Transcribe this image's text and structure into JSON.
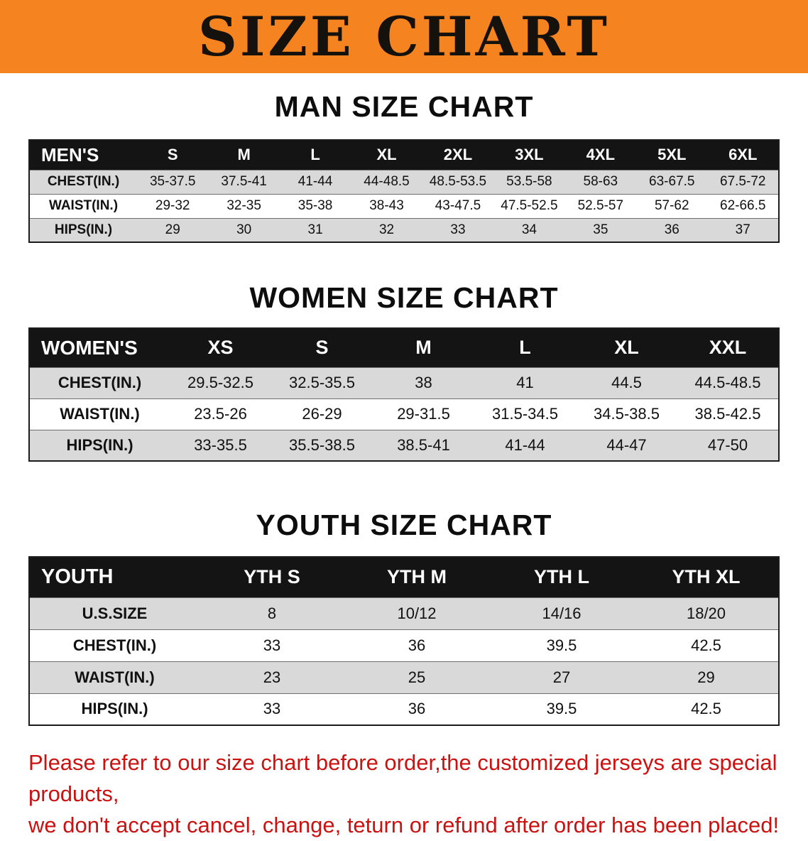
{
  "colors": {
    "banner_bg": "#F5831F",
    "header_bg": "#141414",
    "row_shade": "#D9D9D9",
    "note_color": "#CC1111"
  },
  "banner": {
    "title": "SIZE CHART"
  },
  "sections": [
    {
      "heading": "MAN SIZE CHART",
      "table": {
        "header": [
          "MEN'S",
          "S",
          "M",
          "L",
          "XL",
          "2XL",
          "3XL",
          "4XL",
          "5XL",
          "6XL"
        ],
        "rows": [
          {
            "label": "CHEST(IN.)",
            "values": [
              "35-37.5",
              "37.5-41",
              "41-44",
              "44-48.5",
              "48.5-53.5",
              "53.5-58",
              "58-63",
              "63-67.5",
              "67.5-72"
            ]
          },
          {
            "label": "WAIST(IN.)",
            "values": [
              "29-32",
              "32-35",
              "35-38",
              "38-43",
              "43-47.5",
              "47.5-52.5",
              "52.5-57",
              "57-62",
              "62-66.5"
            ]
          },
          {
            "label": "HIPS(IN.)",
            "values": [
              "29",
              "30",
              "31",
              "32",
              "33",
              "34",
              "35",
              "36",
              "37"
            ]
          }
        ]
      }
    },
    {
      "heading": "WOMEN SIZE CHART",
      "table": {
        "header": [
          "WOMEN'S",
          "XS",
          "S",
          "M",
          "L",
          "XL",
          "XXL"
        ],
        "rows": [
          {
            "label": "CHEST(IN.)",
            "values": [
              "29.5-32.5",
              "32.5-35.5",
              "38",
              "41",
              "44.5",
              "44.5-48.5"
            ]
          },
          {
            "label": "WAIST(IN.)",
            "values": [
              "23.5-26",
              "26-29",
              "29-31.5",
              "31.5-34.5",
              "34.5-38.5",
              "38.5-42.5"
            ]
          },
          {
            "label": "HIPS(IN.)",
            "values": [
              "33-35.5",
              "35.5-38.5",
              "38.5-41",
              "41-44",
              "44-47",
              "47-50"
            ]
          }
        ]
      }
    },
    {
      "heading": "YOUTH SIZE CHART",
      "table": {
        "header": [
          "YOUTH",
          "YTH S",
          "YTH M",
          "YTH L",
          "YTH XL"
        ],
        "rows": [
          {
            "label": "U.S.SIZE",
            "values": [
              "8",
              "10/12",
              "14/16",
              "18/20"
            ]
          },
          {
            "label": "CHEST(IN.)",
            "values": [
              "33",
              "36",
              "39.5",
              "42.5"
            ]
          },
          {
            "label": "WAIST(IN.)",
            "values": [
              "23",
              "25",
              "27",
              "29"
            ]
          },
          {
            "label": "HIPS(IN.)",
            "values": [
              "33",
              "36",
              "39.5",
              "42.5"
            ]
          }
        ]
      }
    }
  ],
  "footer": {
    "line1": "Please refer to our size chart before order,the customized jerseys are special products,",
    "line2": "we don't accept cancel, change, teturn or refund after order has been placed!"
  }
}
